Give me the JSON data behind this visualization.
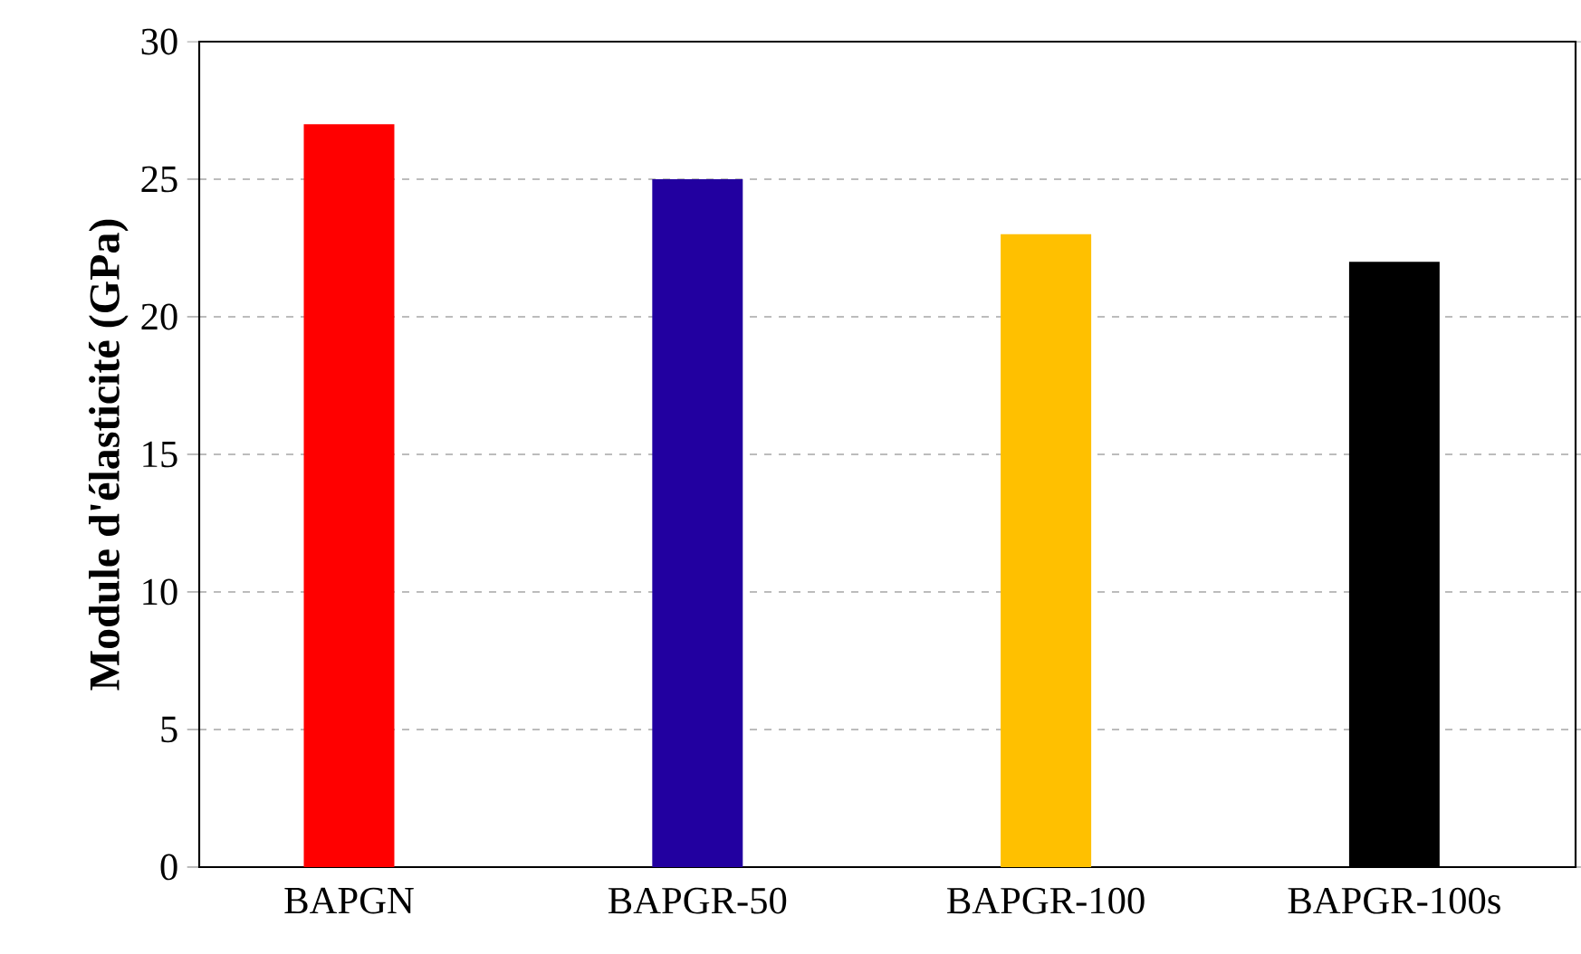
{
  "chart_data": {
    "type": "bar",
    "ylabel": "Module d'élasticité (GPa)",
    "categories": [
      "BAPGN",
      "BAPGR-50",
      "BAPGR-100",
      "BAPGR-100s"
    ],
    "values": [
      27,
      25,
      23,
      22
    ],
    "colors": [
      "#ff0000",
      "#2200a0",
      "#ffc000",
      "#000000"
    ],
    "ylim": [
      0,
      30
    ],
    "yticks": [
      0,
      5,
      10,
      15,
      20,
      25,
      30
    ],
    "grid": "y"
  }
}
